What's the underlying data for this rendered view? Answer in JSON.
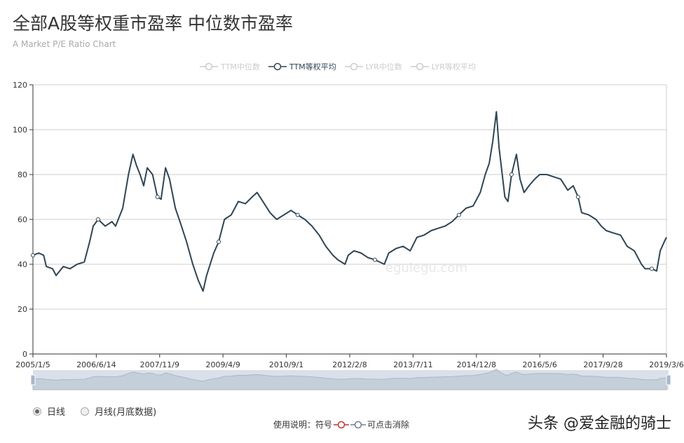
{
  "title": "全部A股等权重市盈率 中位数市盈率",
  "subtitle": "A Market P/E Ratio Chart",
  "legend": [
    {
      "label": "TTM中位数",
      "active": false
    },
    {
      "label": "TTM等权平均",
      "active": true
    },
    {
      "label": "LYR中位数",
      "active": false
    },
    {
      "label": "LYR等权平均",
      "active": false
    }
  ],
  "watermark_site": "egulegu.com",
  "radios": [
    {
      "label": "日线",
      "selected": true
    },
    {
      "label": "月线(月底数据)",
      "selected": false
    }
  ],
  "note": {
    "prefix": "使用说明：符号",
    "suffix": "可点击消除"
  },
  "author": "头条 @爱金融的骑士",
  "colors": {
    "line": "#2f4554",
    "grid": "#cccccc",
    "slider": "#d5dde8"
  },
  "chart_data": {
    "type": "line",
    "title": "全部A股等权重市盈率 中位数市盈率",
    "xlabel": "",
    "ylabel": "",
    "ylim": [
      0,
      120
    ],
    "yticks": [
      0,
      20,
      40,
      60,
      80,
      100,
      120
    ],
    "xlim": [
      2005.0,
      2019.19
    ],
    "xtick_labels": [
      "2005/1/5",
      "2006/6/14",
      "2007/11/9",
      "2009/4/9",
      "2010/9/1",
      "2012/2/8",
      "2013/7/11",
      "2014/12/8",
      "2016/5/6",
      "2017/9/28",
      "2019/3/6"
    ],
    "grid": true,
    "legend_position": "top-center",
    "series": [
      {
        "name": "TTM等权平均",
        "x": [
          2005.0,
          2005.13,
          2005.24,
          2005.3,
          2005.44,
          2005.52,
          2005.68,
          2005.83,
          2005.99,
          2006.15,
          2006.27,
          2006.35,
          2006.46,
          2006.62,
          2006.77,
          2006.85,
          2007.01,
          2007.14,
          2007.24,
          2007.32,
          2007.4,
          2007.48,
          2007.56,
          2007.68,
          2007.79,
          2007.87,
          2007.97,
          2008.06,
          2008.19,
          2008.31,
          2008.44,
          2008.58,
          2008.7,
          2008.81,
          2008.89,
          2009.05,
          2009.16,
          2009.29,
          2009.44,
          2009.6,
          2009.76,
          2009.91,
          2010.02,
          2010.15,
          2010.31,
          2010.46,
          2010.62,
          2010.78,
          2010.93,
          2011.09,
          2011.25,
          2011.41,
          2011.56,
          2011.72,
          2011.83,
          2011.99,
          2012.06,
          2012.19,
          2012.35,
          2012.5,
          2012.66,
          2012.87,
          2012.97,
          2013.13,
          2013.29,
          2013.45,
          2013.6,
          2013.76,
          2013.92,
          2014.07,
          2014.23,
          2014.39,
          2014.54,
          2014.7,
          2014.86,
          2015.02,
          2015.13,
          2015.22,
          2015.3,
          2015.38,
          2015.44,
          2015.5,
          2015.57,
          2015.64,
          2015.72,
          2015.83,
          2015.91,
          2016.0,
          2016.11,
          2016.24,
          2016.35,
          2016.51,
          2016.66,
          2016.82,
          2016.98,
          2017.1,
          2017.21,
          2017.29,
          2017.45,
          2017.61,
          2017.73,
          2017.84,
          2017.99,
          2018.16,
          2018.31,
          2018.47,
          2018.63,
          2018.71,
          2018.86,
          2018.97,
          2019.05,
          2019.14,
          2019.19
        ],
        "values": [
          44,
          45,
          44,
          39,
          38,
          35,
          39,
          38,
          40,
          41,
          50,
          57,
          60,
          57,
          59,
          57,
          65,
          80,
          89,
          84,
          80,
          75,
          83,
          80,
          70,
          69,
          83,
          78,
          65,
          58,
          50,
          40,
          33,
          28,
          35,
          45,
          50,
          60,
          62,
          68,
          67,
          70,
          72,
          68,
          63,
          60,
          62,
          64,
          62,
          60,
          57,
          53,
          48,
          44,
          42,
          40,
          44,
          46,
          45,
          43,
          42,
          40,
          45,
          47,
          48,
          46,
          52,
          53,
          55,
          56,
          57,
          59,
          62,
          65,
          66,
          72,
          80,
          85,
          95,
          108,
          92,
          82,
          70,
          68,
          80,
          89,
          78,
          72,
          75,
          78,
          80,
          80,
          79,
          78,
          73,
          75,
          70,
          63,
          62,
          60,
          57,
          55,
          54,
          53,
          48,
          46,
          40,
          38,
          38,
          37,
          46,
          50,
          52
        ]
      }
    ]
  }
}
